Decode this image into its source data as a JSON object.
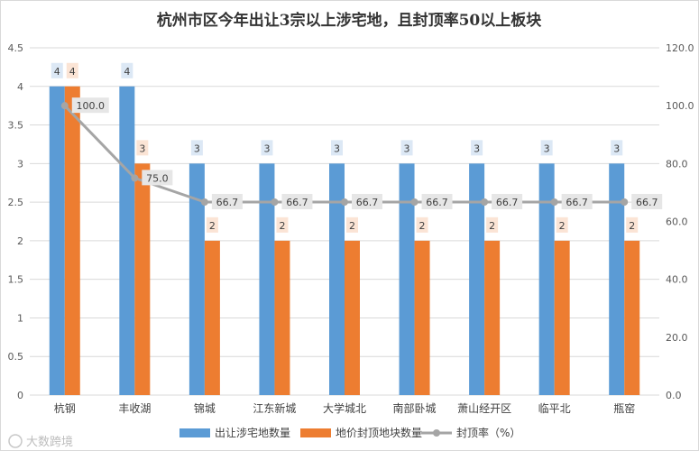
{
  "chart_data": {
    "type": "bar",
    "title": "杭州市区今年出让3宗以上涉宅地，且封顶率50以上板块",
    "categories": [
      "杭钢",
      "丰收湖",
      "锦城",
      "江东新城",
      "大学城北",
      "南部卧城",
      "萧山经开区",
      "临平北",
      "瓶窑"
    ],
    "series": [
      {
        "name": "出让涉宅地数量",
        "type": "bar",
        "axis": "left",
        "color": "#5B9BD5",
        "values": [
          4,
          4,
          3,
          3,
          3,
          3,
          3,
          3,
          3
        ]
      },
      {
        "name": "地价封顶地块数量",
        "type": "bar",
        "axis": "left",
        "color": "#ED7D31",
        "values": [
          4,
          3,
          2,
          2,
          2,
          2,
          2,
          2,
          2
        ]
      },
      {
        "name": "封顶率（%）",
        "type": "line",
        "axis": "right",
        "color": "#A5A5A5",
        "values": [
          100.0,
          75.0,
          66.7,
          66.7,
          66.7,
          66.7,
          66.7,
          66.7,
          66.7
        ]
      }
    ],
    "y_left": {
      "ylim": [
        0,
        4.5
      ],
      "ticks": [
        "0",
        "0.5",
        "1",
        "1.5",
        "2",
        "2.5",
        "3",
        "3.5",
        "4",
        "4.5"
      ]
    },
    "y_right": {
      "ylim": [
        0,
        120
      ],
      "ticks": [
        "0.0",
        "20.0",
        "40.0",
        "60.0",
        "80.0",
        "100.0",
        "120.0"
      ]
    },
    "grid": true,
    "legend": "bottom"
  },
  "watermark": "大数跨境"
}
